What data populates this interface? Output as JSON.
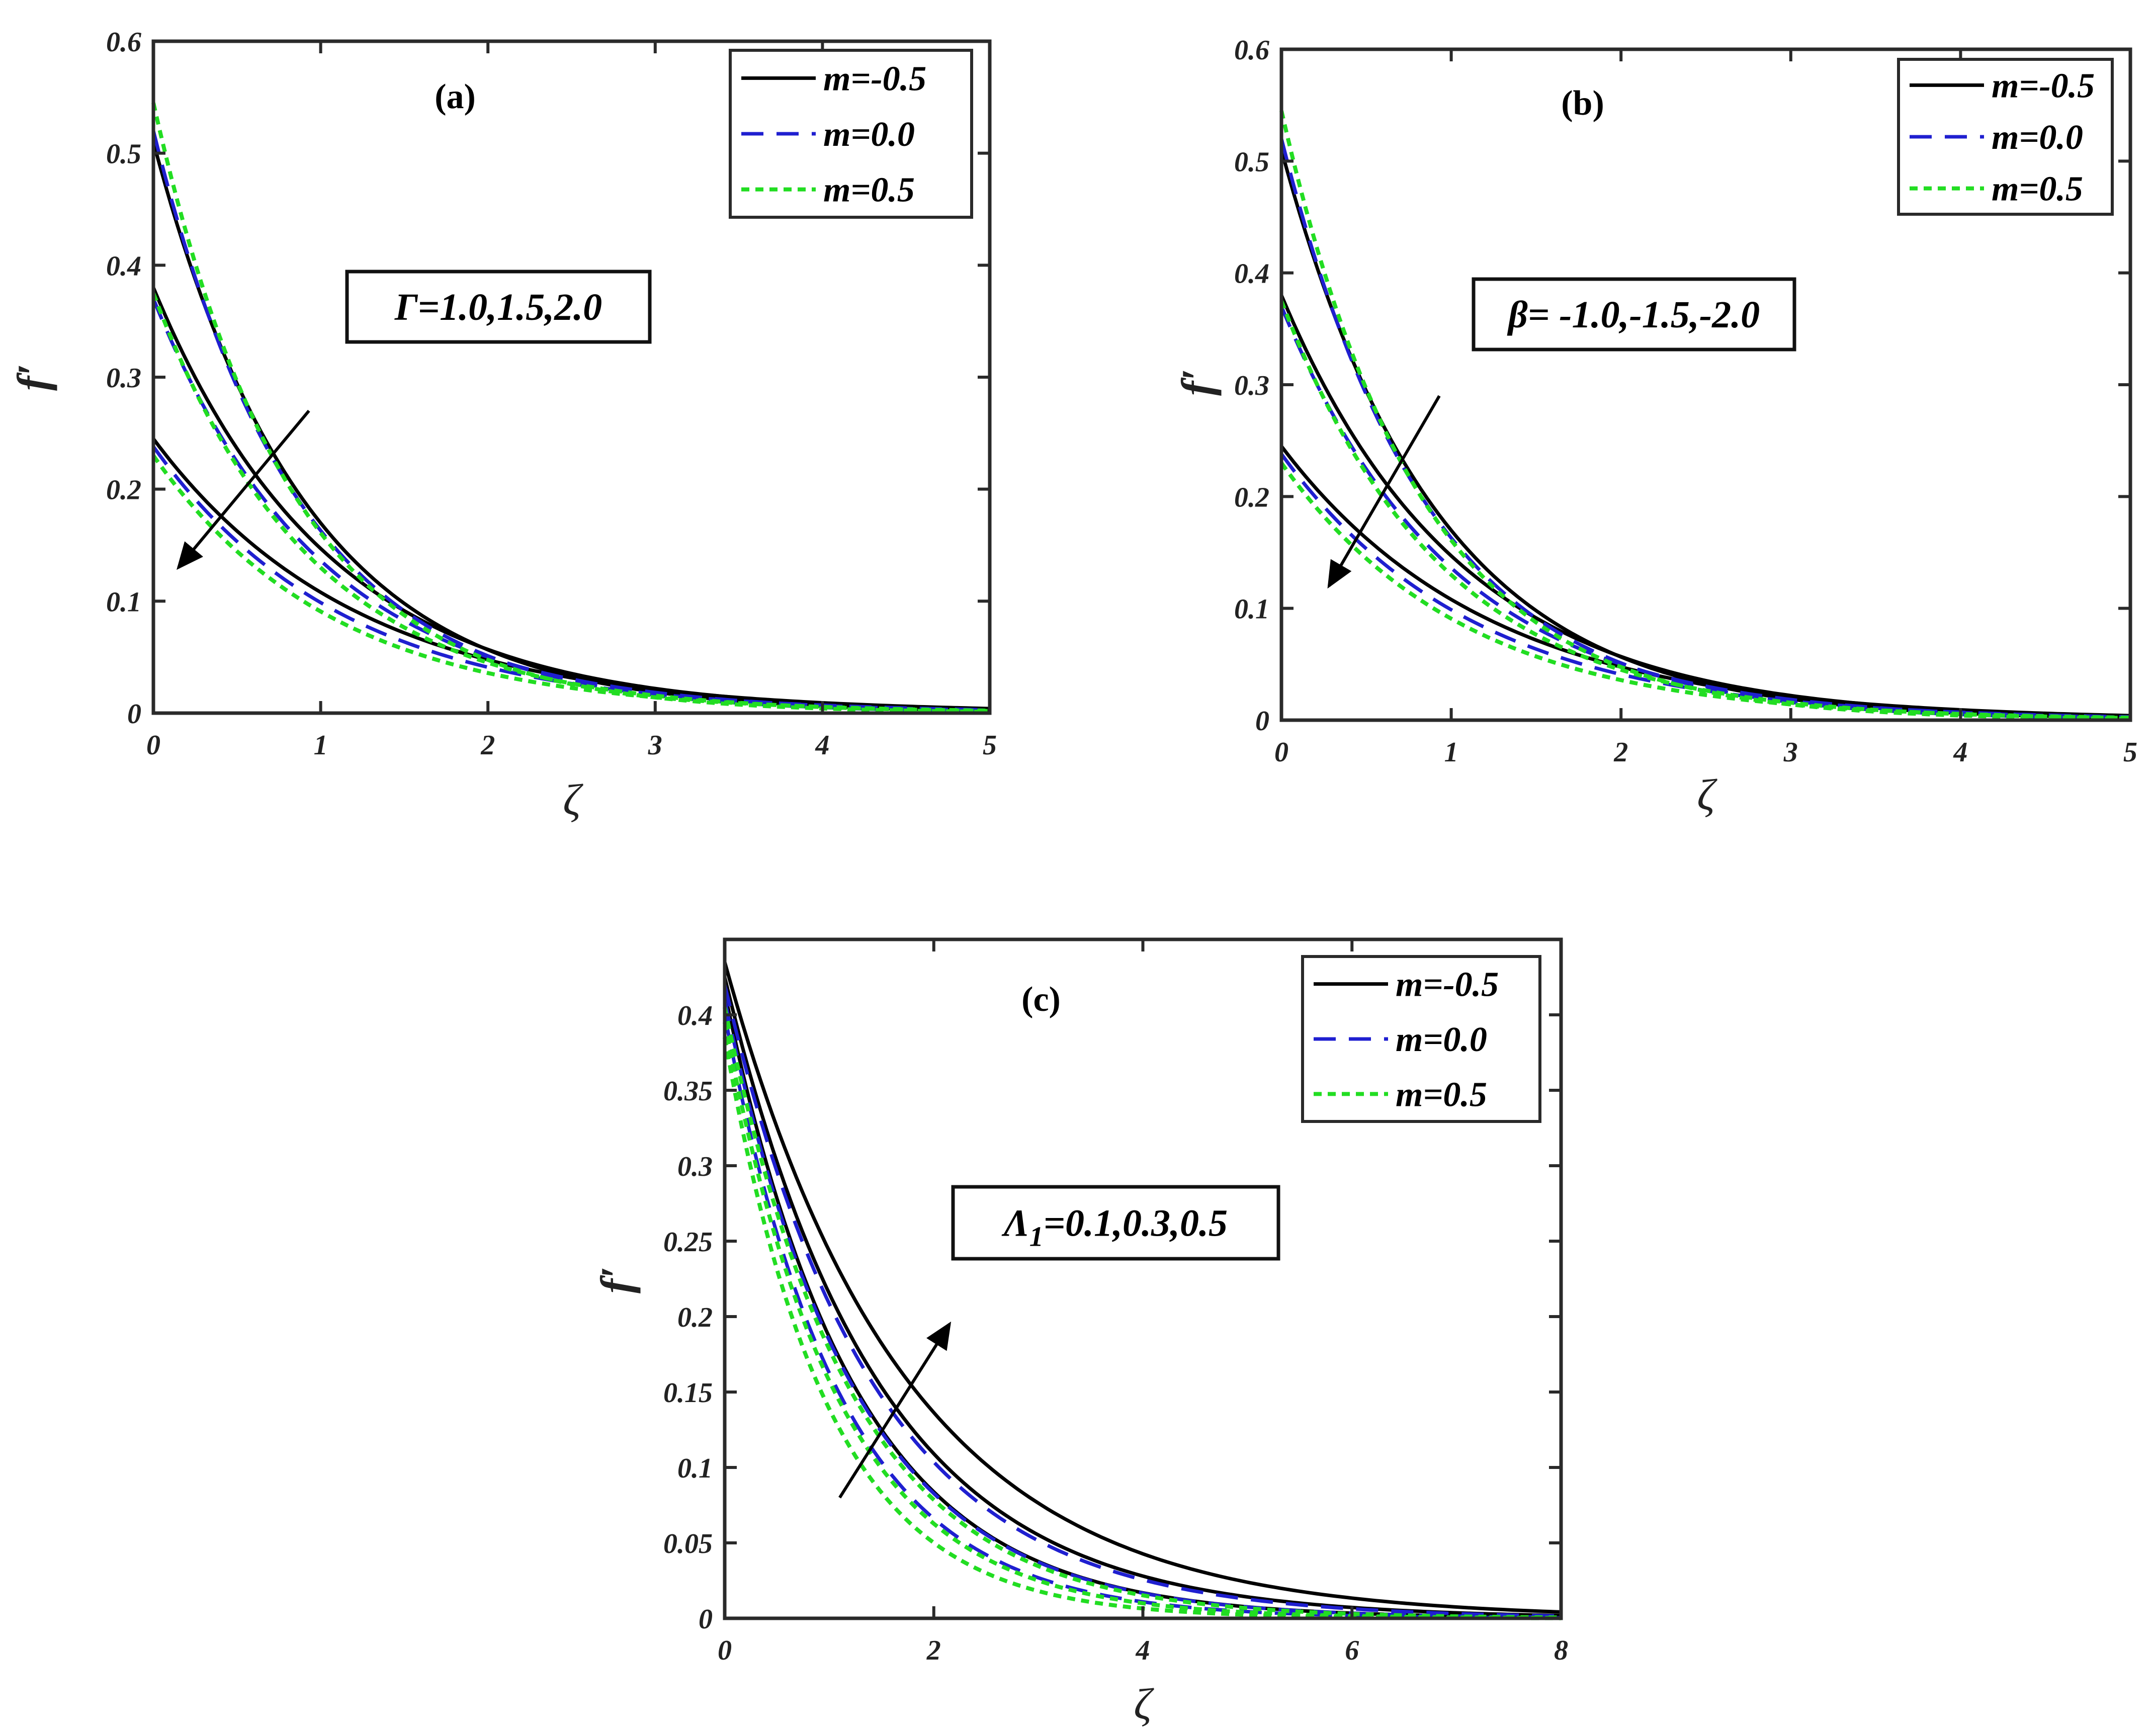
{
  "colors": {
    "m_neg": "#000000",
    "m_zero": "#1f1fd0",
    "m_pos": "#22dd22",
    "frame": "#2a2a2a"
  },
  "chart_data": [
    {
      "type": "line",
      "panel_label": "(a)",
      "ylabel": "f′",
      "xlabel": "ζ",
      "xlim": [
        0,
        5
      ],
      "ylim": [
        0,
        0.6
      ],
      "xticks": [
        "0",
        "1",
        "2",
        "3",
        "4",
        "5"
      ],
      "yticks": [
        "0",
        "0.1",
        "0.2",
        "0.3",
        "0.4",
        "0.5",
        "0.6"
      ],
      "legend": {
        "position": "top-right",
        "entries": [
          "m=-0.5",
          "m=0.0",
          "m=0.5"
        ]
      },
      "annotation": {
        "text": "Γ=1.0,1.5,2.0",
        "arrow_from": [
          0.93,
          0.27
        ],
        "arrow_to": [
          0.15,
          0.13
        ]
      },
      "series": [
        {
          "name": "m=-0.5",
          "group": 0,
          "y0": 0.51,
          "decay": 1.1
        },
        {
          "name": "m=-0.5",
          "group": 0,
          "y0": 0.38,
          "decay": 0.95
        },
        {
          "name": "m=-0.5",
          "group": 0,
          "y0": 0.245,
          "decay": 0.82
        },
        {
          "name": "m=0.0",
          "group": 1,
          "y0": 0.52,
          "decay": 1.16
        },
        {
          "name": "m=0.0",
          "group": 1,
          "y0": 0.37,
          "decay": 1.0
        },
        {
          "name": "m=0.0",
          "group": 1,
          "y0": 0.238,
          "decay": 0.88
        },
        {
          "name": "m=0.5",
          "group": 2,
          "y0": 0.545,
          "decay": 1.22
        },
        {
          "name": "m=0.5",
          "group": 2,
          "y0": 0.375,
          "decay": 1.06
        },
        {
          "name": "m=0.5",
          "group": 2,
          "y0": 0.23,
          "decay": 0.93
        }
      ]
    },
    {
      "type": "line",
      "panel_label": "(b)",
      "ylabel": "f′",
      "xlabel": "ζ",
      "xlim": [
        0,
        5
      ],
      "ylim": [
        0,
        0.6
      ],
      "xticks": [
        "0",
        "1",
        "2",
        "3",
        "4",
        "5"
      ],
      "yticks": [
        "0",
        "0.1",
        "0.2",
        "0.3",
        "0.4",
        "0.5",
        "0.6"
      ],
      "legend": {
        "position": "top-right",
        "entries": [
          "m=-0.5",
          "m=0.0",
          "m=0.5"
        ]
      },
      "annotation": {
        "text": "β= -1.0,-1.5,-2.0",
        "arrow_from": [
          0.93,
          0.29
        ],
        "arrow_to": [
          0.28,
          0.12
        ]
      },
      "series": [
        {
          "name": "m=-0.5",
          "group": 0,
          "y0": 0.51,
          "decay": 1.1
        },
        {
          "name": "m=-0.5",
          "group": 0,
          "y0": 0.38,
          "decay": 0.95
        },
        {
          "name": "m=-0.5",
          "group": 0,
          "y0": 0.245,
          "decay": 0.82
        },
        {
          "name": "m=0.0",
          "group": 1,
          "y0": 0.52,
          "decay": 1.16
        },
        {
          "name": "m=0.0",
          "group": 1,
          "y0": 0.37,
          "decay": 1.0
        },
        {
          "name": "m=0.0",
          "group": 1,
          "y0": 0.238,
          "decay": 0.88
        },
        {
          "name": "m=0.5",
          "group": 2,
          "y0": 0.545,
          "decay": 1.22
        },
        {
          "name": "m=0.5",
          "group": 2,
          "y0": 0.375,
          "decay": 1.06
        },
        {
          "name": "m=0.5",
          "group": 2,
          "y0": 0.23,
          "decay": 0.93
        }
      ]
    },
    {
      "type": "line",
      "panel_label": "(c)",
      "ylabel": "f′",
      "xlabel": "ζ",
      "xlim": [
        0,
        8
      ],
      "ylim": [
        0,
        0.45
      ],
      "xticks": [
        "0",
        "2",
        "4",
        "6",
        "8"
      ],
      "yticks": [
        "0",
        "0.05",
        "0.1",
        "0.15",
        "0.2",
        "0.25",
        "0.3",
        "0.35",
        "0.4"
      ],
      "legend": {
        "position": "top-right",
        "entries": [
          "m=-0.5",
          "m=0.0",
          "m=0.5"
        ]
      },
      "annotation": {
        "text_main": "Λ",
        "text_sub": "1",
        "text_rest": "=0.1,0.3,0.5",
        "arrow_from": [
          1.1,
          0.08
        ],
        "arrow_to": [
          2.15,
          0.195
        ]
      },
      "series": [
        {
          "name": "m=-0.5",
          "group": 0,
          "y0": 0.435,
          "decay": 0.58
        },
        {
          "name": "m=-0.5",
          "group": 0,
          "y0": 0.425,
          "decay": 0.68
        },
        {
          "name": "m=-0.5",
          "group": 0,
          "y0": 0.415,
          "decay": 0.8
        },
        {
          "name": "m=0.0",
          "group": 1,
          "y0": 0.42,
          "decay": 0.7
        },
        {
          "name": "m=0.0",
          "group": 1,
          "y0": 0.41,
          "decay": 0.8
        },
        {
          "name": "m=0.0",
          "group": 1,
          "y0": 0.4,
          "decay": 0.9
        },
        {
          "name": "m=0.5",
          "group": 2,
          "y0": 0.405,
          "decay": 0.82
        },
        {
          "name": "m=0.5",
          "group": 2,
          "y0": 0.395,
          "decay": 0.92
        },
        {
          "name": "m=0.5",
          "group": 2,
          "y0": 0.385,
          "decay": 1.02
        }
      ]
    }
  ]
}
